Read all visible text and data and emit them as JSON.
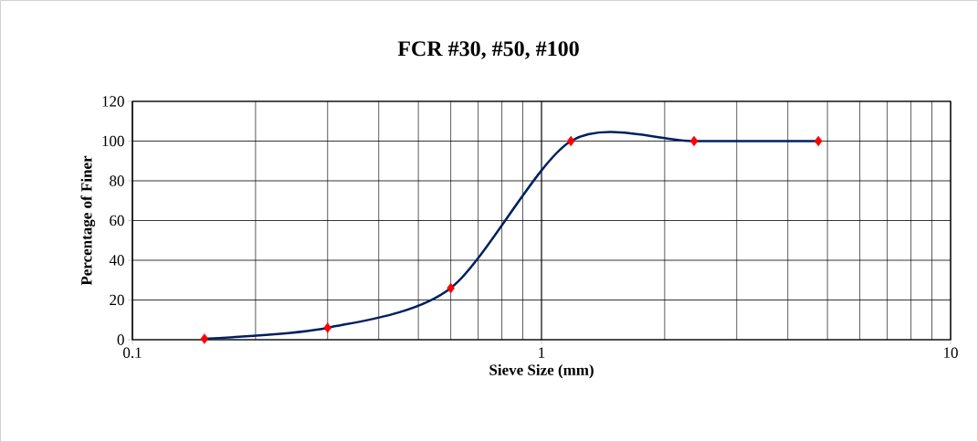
{
  "chart_data": {
    "type": "line",
    "title": "FCR #30, #50, #100",
    "xlabel": "Sieve Size (mm)",
    "ylabel": "Percentage of Finer",
    "x": [
      0.15,
      0.3,
      0.6,
      1.18,
      2.36,
      4.75
    ],
    "series": [
      {
        "color": "#002060",
        "colors": [
          "#ff0000",
          "#ff0000",
          "#ff0000",
          "#ff0000",
          "#ff0000",
          "#ff0000"
        ],
        "values": [
          0.5,
          6,
          26,
          100,
          100,
          100
        ]
      }
    ],
    "log": "x",
    "xlim": [
      0.1,
      10
    ],
    "xticks": [
      0.1,
      1,
      10
    ],
    "ylim": [
      0,
      120
    ],
    "yticks": [
      0,
      20,
      40,
      60,
      80,
      100,
      120
    ],
    "grid": true,
    "marker": "diamond"
  }
}
